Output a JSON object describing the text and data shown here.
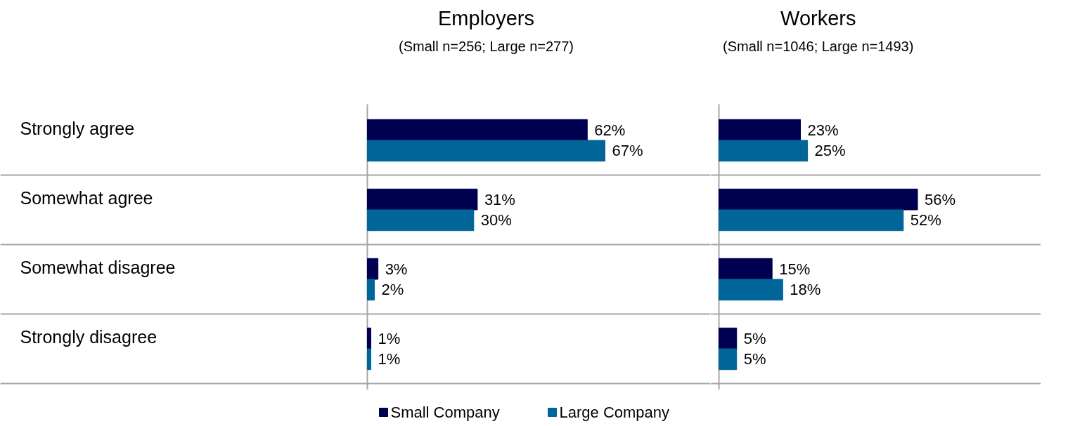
{
  "chart_data": [
    {
      "type": "bar",
      "orientation": "horizontal",
      "title": "Employers",
      "subtitle": "(Small n=256; Large n=277)",
      "categories": [
        "Strongly agree",
        "Somewhat agree",
        "Somewhat disagree",
        "Strongly disagree"
      ],
      "tick_labels": "y",
      "legend": "bottom",
      "series": [
        {
          "name": "Small Company",
          "color": "#000050",
          "values": [
            62,
            31,
            3,
            1
          ],
          "value_labels": [
            "62%",
            "31%",
            "3%",
            "1%"
          ]
        },
        {
          "name": "Large Company",
          "color": "#006699",
          "values": [
            67,
            30,
            2,
            1
          ],
          "value_labels": [
            "67%",
            "30%",
            "2%",
            "1%"
          ]
        }
      ]
    },
    {
      "type": "bar",
      "orientation": "horizontal",
      "title": "Workers",
      "subtitle": "(Small n=1046; Large n=1493)",
      "series": [
        {
          "color": "#000050",
          "values": [
            23,
            56,
            15,
            5
          ],
          "value_labels": [
            "23%",
            "56%",
            "15%",
            "5%"
          ]
        },
        {
          "color": "#006699",
          "values": [
            25,
            52,
            18,
            5
          ],
          "value_labels": [
            "25%",
            "52%",
            "18%",
            "5%"
          ]
        }
      ]
    }
  ]
}
